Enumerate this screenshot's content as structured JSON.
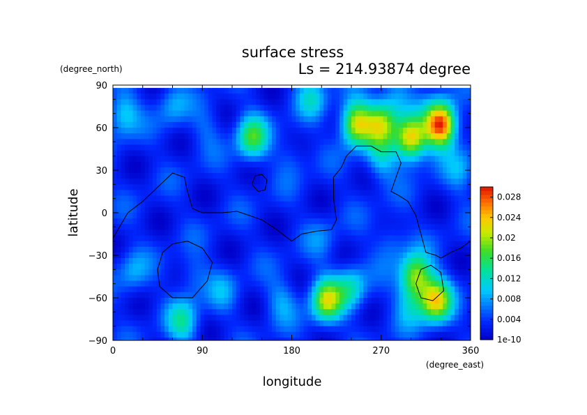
{
  "chart_data": {
    "type": "heatmap",
    "title": "surface stress",
    "subtitle": "Ls = 214.93874 degree",
    "xlabel": "longitude",
    "ylabel": "latitude",
    "x_units": "(degree_east)",
    "y_units": "(degree_north)",
    "xlim": [
      0,
      360
    ],
    "ylim": [
      -90,
      90
    ],
    "x_ticks": [
      "0",
      "90",
      "180",
      "270",
      "360"
    ],
    "y_ticks": [
      "90",
      "60",
      "30",
      "0",
      "−30",
      "−60",
      "−90"
    ],
    "x_tick_values": [
      0,
      90,
      180,
      270,
      360
    ],
    "y_tick_values": [
      90,
      60,
      30,
      0,
      -30,
      -60,
      -90
    ],
    "colorbar": {
      "min": 0,
      "max": 0.03,
      "labels": [
        "0.028",
        "0.024",
        "0.02",
        "0.016",
        "0.012",
        "0.008",
        "0.004",
        "1e-10"
      ],
      "label_values": [
        0.028,
        0.024,
        0.02,
        0.016,
        0.012,
        0.008,
        0.004,
        0
      ],
      "colormap": "rainbow"
    },
    "background_level": 0.003,
    "features": [
      {
        "lon": 10,
        "lat": 70,
        "value": 0.011
      },
      {
        "lon": 60,
        "lat": 75,
        "value": 0.008
      },
      {
        "lon": 140,
        "lat": 53,
        "value": 0.016
      },
      {
        "lon": 200,
        "lat": 82,
        "value": 0.01
      },
      {
        "lon": 245,
        "lat": 63,
        "value": 0.022
      },
      {
        "lon": 270,
        "lat": 63,
        "value": 0.018
      },
      {
        "lon": 285,
        "lat": 82,
        "value": 0.009
      },
      {
        "lon": 300,
        "lat": 52,
        "value": 0.024
      },
      {
        "lon": 330,
        "lat": 62,
        "value": 0.03
      },
      {
        "lon": 270,
        "lat": 38,
        "value": 0.01
      },
      {
        "lon": 95,
        "lat": 60,
        "value": 0.006
      },
      {
        "lon": 20,
        "lat": -42,
        "value": 0.008
      },
      {
        "lon": 80,
        "lat": -45,
        "value": 0.007
      },
      {
        "lon": 110,
        "lat": -55,
        "value": 0.007
      },
      {
        "lon": 170,
        "lat": -62,
        "value": 0.008
      },
      {
        "lon": 215,
        "lat": -62,
        "value": 0.02
      },
      {
        "lon": 240,
        "lat": -53,
        "value": 0.012
      },
      {
        "lon": 305,
        "lat": -45,
        "value": 0.02
      },
      {
        "lon": 325,
        "lat": -62,
        "value": 0.022
      },
      {
        "lon": 300,
        "lat": -65,
        "value": 0.009
      },
      {
        "lon": 70,
        "lat": -77,
        "value": 0.012
      },
      {
        "lon": 280,
        "lat": -20,
        "value": 0.007
      },
      {
        "lon": 210,
        "lat": -18,
        "value": 0.006
      },
      {
        "lon": 350,
        "lat": 30,
        "value": 0.008
      },
      {
        "lon": 180,
        "lat": 40,
        "value": 0.006
      }
    ],
    "contours": [
      [
        [
          0,
          -18
        ],
        [
          15,
          0
        ],
        [
          30,
          8
        ],
        [
          45,
          18
        ],
        [
          60,
          28
        ],
        [
          72,
          25
        ],
        [
          75,
          15
        ],
        [
          80,
          3
        ],
        [
          90,
          0
        ],
        [
          110,
          0
        ],
        [
          125,
          1
        ],
        [
          150,
          -5
        ],
        [
          165,
          -12
        ],
        [
          180,
          -20
        ],
        [
          190,
          -15
        ],
        [
          205,
          -13
        ],
        [
          220,
          -12
        ],
        [
          225,
          -5
        ],
        [
          222,
          10
        ],
        [
          222,
          25
        ],
        [
          230,
          32
        ],
        [
          235,
          40
        ],
        [
          245,
          47
        ],
        [
          260,
          47
        ],
        [
          270,
          43
        ],
        [
          285,
          43
        ],
        [
          290,
          35
        ],
        [
          285,
          25
        ],
        [
          280,
          15
        ],
        [
          288,
          12
        ],
        [
          297,
          8
        ],
        [
          305,
          -2
        ],
        [
          310,
          -15
        ],
        [
          315,
          -28
        ],
        [
          325,
          -30
        ],
        [
          330,
          -32
        ],
        [
          340,
          -28
        ],
        [
          350,
          -25
        ],
        [
          360,
          -20
        ]
      ],
      [
        [
          140,
          20
        ],
        [
          143,
          26
        ],
        [
          150,
          27
        ],
        [
          155,
          23
        ],
        [
          153,
          16
        ],
        [
          146,
          15
        ],
        [
          140,
          20
        ]
      ],
      [
        [
          45,
          -40
        ],
        [
          50,
          -28
        ],
        [
          60,
          -22
        ],
        [
          75,
          -20
        ],
        [
          90,
          -25
        ],
        [
          100,
          -35
        ],
        [
          95,
          -48
        ],
        [
          80,
          -60
        ],
        [
          60,
          -60
        ],
        [
          47,
          -52
        ],
        [
          45,
          -40
        ]
      ],
      [
        [
          305,
          -50
        ],
        [
          310,
          -40
        ],
        [
          320,
          -37
        ],
        [
          330,
          -42
        ],
        [
          333,
          -55
        ],
        [
          322,
          -62
        ],
        [
          310,
          -60
        ],
        [
          305,
          -50
        ]
      ]
    ]
  }
}
